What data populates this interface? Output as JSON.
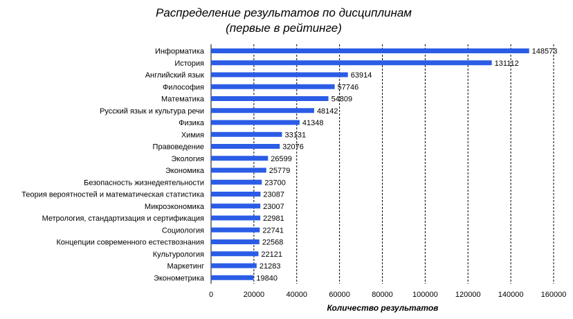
{
  "chart_data": {
    "type": "bar",
    "orientation": "horizontal",
    "title": "Распределение результатов по дисциплинам",
    "subtitle": "(первые в рейтинге)",
    "xlabel": "Количество результатов",
    "ylabel": "",
    "xlim": [
      0,
      160000
    ],
    "ticks": [
      "0",
      "20000",
      "40000",
      "60000",
      "80000",
      "100000",
      "120000",
      "140000",
      "160000"
    ],
    "tick_values": [
      0,
      20000,
      40000,
      60000,
      80000,
      100000,
      120000,
      140000,
      160000
    ],
    "grid": "vertical-dashed",
    "legend": "none",
    "bar_color": "#2b5ce6",
    "categories": [
      "Информатика",
      "История",
      "Английский язык",
      "Философия",
      "Математика",
      "Русский язык и культура речи",
      "Физика",
      "Химия",
      "Правоведение",
      "Экология",
      "Экономика",
      "Безопасность жизнедеятельности",
      "Теория вероятностей и математическая статистика",
      "Микроэкономика",
      "Метрология, стандартизация и сертификация",
      "Социология",
      "Концепции современного естествознания",
      "Культурология",
      "Маркетинг",
      "Эконометрика"
    ],
    "values": [
      148573,
      131112,
      63914,
      57746,
      54809,
      48142,
      41348,
      33131,
      32076,
      26599,
      25779,
      23700,
      23087,
      23007,
      22981,
      22741,
      22568,
      22121,
      21283,
      19840
    ],
    "value_labels": [
      "148573",
      "131112",
      "63914",
      "57746",
      "54809",
      "48142",
      "41348",
      "33131",
      "32076",
      "26599",
      "25779",
      "23700",
      "23087",
      "23007",
      "22981",
      "22741",
      "22568",
      "22121",
      "21283",
      "19840"
    ]
  }
}
